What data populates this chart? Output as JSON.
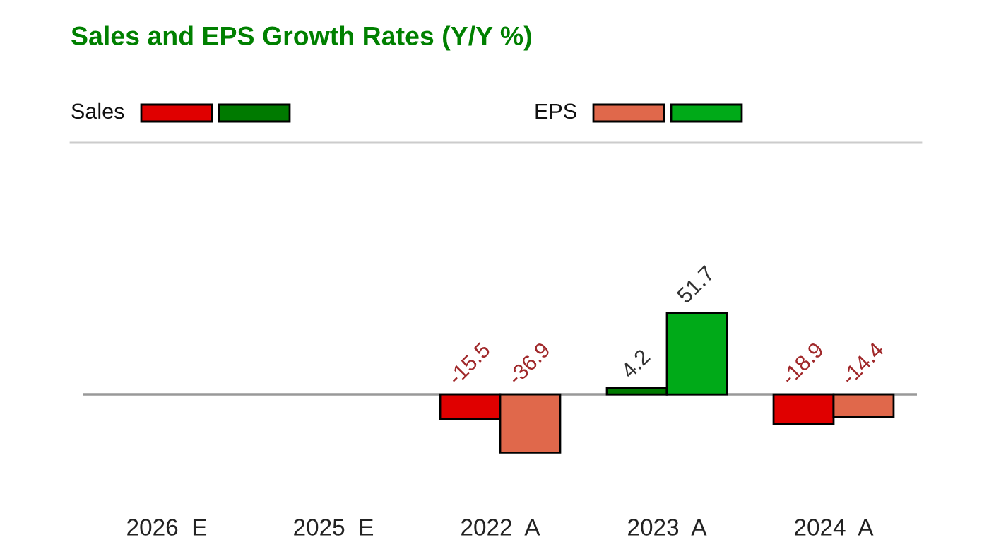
{
  "chart_data": {
    "type": "bar",
    "title": "Sales and EPS Growth Rates (Y/Y %)",
    "categories": [
      "2026  E",
      "2025  E",
      "2022  A",
      "2023  A",
      "2024  A"
    ],
    "series": [
      {
        "name": "Sales",
        "values": [
          null,
          null,
          -15.5,
          4.2,
          -18.9
        ],
        "colors": [
          null,
          null,
          "#e00000",
          "#007a00",
          "#e00000"
        ]
      },
      {
        "name": "EPS",
        "values": [
          null,
          null,
          -36.9,
          51.7,
          -14.4
        ],
        "colors": [
          null,
          null,
          "#e0684b",
          "#00aa18",
          "#e0684b"
        ]
      }
    ],
    "data_labels": true,
    "legend": "top left",
    "grid": false
  }
}
